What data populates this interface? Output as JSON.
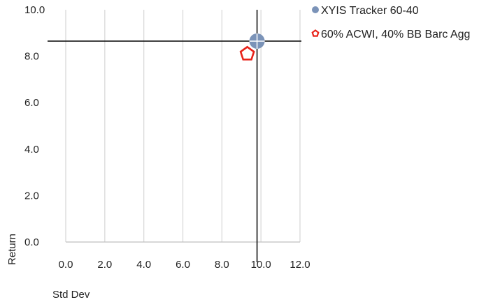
{
  "chart_data": {
    "type": "scatter",
    "title": "",
    "xlabel": "Std Dev",
    "ylabel": "Return",
    "xlim": [
      0,
      12
    ],
    "ylim": [
      0,
      10
    ],
    "x_ticks": [
      "0.0",
      "2.0",
      "4.0",
      "6.0",
      "8.0",
      "10.0",
      "12.0"
    ],
    "y_ticks": [
      "0.0",
      "2.0",
      "4.0",
      "6.0",
      "8.0",
      "10.0"
    ],
    "grid": "vertical",
    "legend_position": "top-right",
    "crosshair": {
      "x": 9.8,
      "y": 8.65
    },
    "series": [
      {
        "name": "XYIS Tracker 60-40",
        "marker": "circle",
        "color": "#7b93b8",
        "x": 9.8,
        "y": 8.65
      },
      {
        "name": "60% ACWI, 40% BB Barc Agg",
        "marker": "pentagon",
        "color": "#e8231a",
        "x": 9.3,
        "y": 8.1
      }
    ]
  }
}
